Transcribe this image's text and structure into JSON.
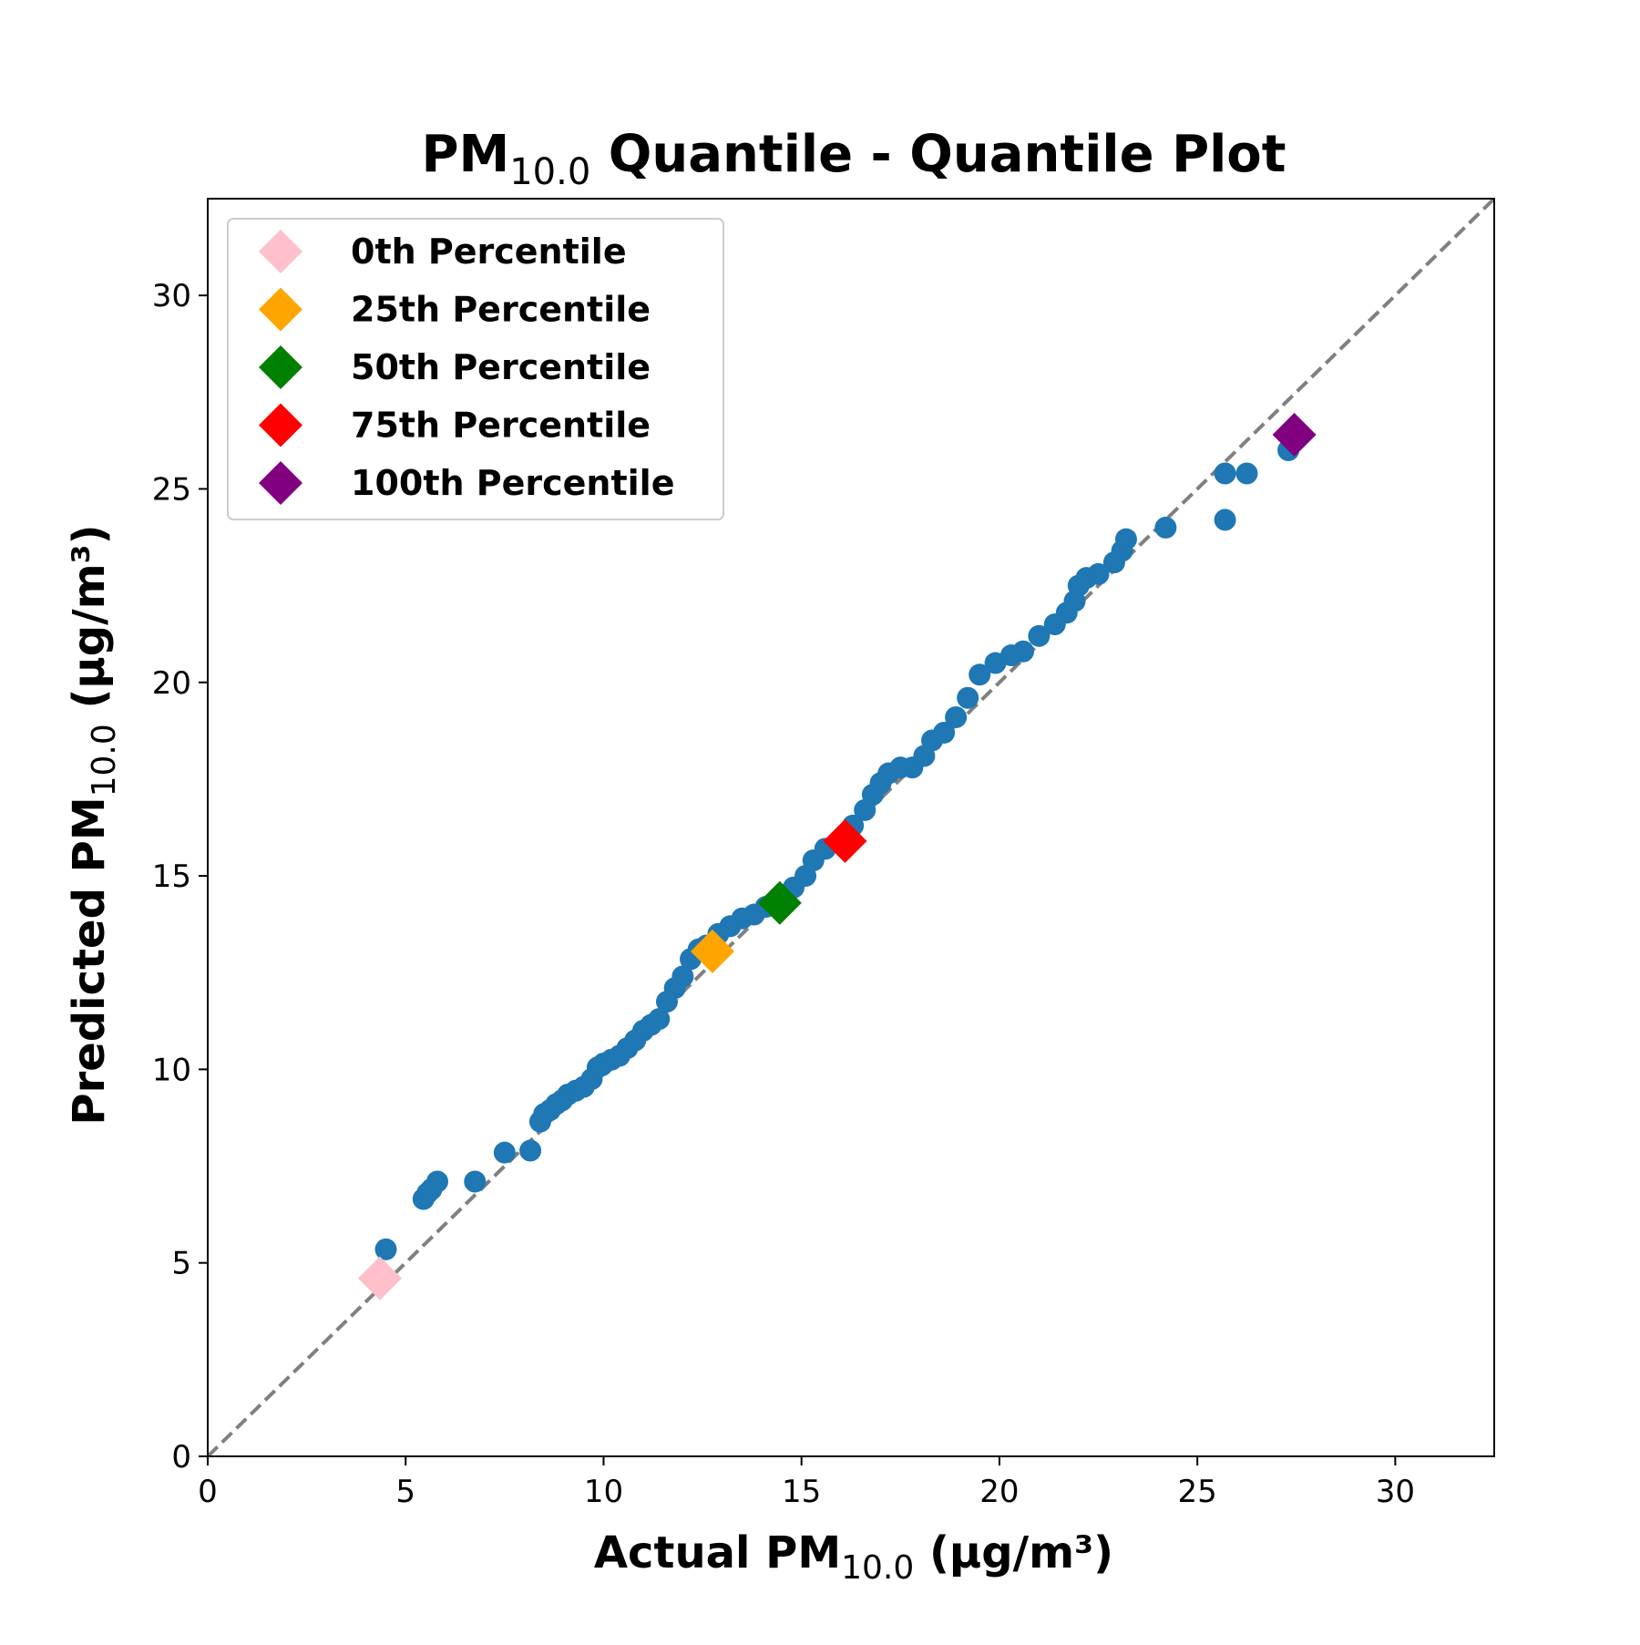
{
  "chart_data": {
    "type": "scatter",
    "title": {
      "main": "PM",
      "sub": "10.0",
      "rest": " Quantile - Quantile Plot"
    },
    "xlabel": {
      "main": "Actual PM",
      "sub": "10.0",
      "rest": " (µg/m³)"
    },
    "ylabel": {
      "main": "Predicted PM",
      "sub": "10.0",
      "rest": " (µg/m³)"
    },
    "xlim": [
      0,
      32.5
    ],
    "ylim": [
      0,
      32.5
    ],
    "xticks": [
      0,
      5,
      10,
      15,
      20,
      25,
      30
    ],
    "yticks": [
      0,
      5,
      10,
      15,
      20,
      25,
      30
    ],
    "grid": false,
    "legend_position": "top-left",
    "reference_line": {
      "style": "dashed",
      "color": "#808080",
      "from": [
        0,
        0
      ],
      "to": [
        32.5,
        32.5
      ]
    },
    "series": [
      {
        "marker": "circle",
        "color": "#1f77b4",
        "x": [
          4.5,
          5.45,
          5.55,
          5.65,
          5.8,
          6.75,
          7.5,
          8.15,
          8.4,
          8.5,
          8.65,
          8.8,
          8.95,
          9.1,
          9.3,
          9.5,
          9.7,
          9.85,
          9.95,
          10.0,
          10.2,
          10.4,
          10.6,
          10.8,
          11.0,
          11.2,
          11.4,
          11.6,
          11.8,
          12.0,
          12.2,
          12.4,
          12.6,
          12.9,
          13.2,
          13.5,
          13.8,
          14.1,
          14.5,
          14.8,
          15.1,
          15.3,
          15.6,
          16.0,
          16.3,
          16.6,
          16.8,
          17.0,
          17.2,
          17.5,
          17.8,
          18.1,
          18.3,
          18.6,
          18.9,
          19.2,
          19.5,
          19.9,
          20.3,
          20.6,
          21.0,
          21.4,
          21.7,
          21.9,
          22.0,
          22.2,
          22.5,
          22.9,
          23.1,
          23.2,
          24.2,
          25.7,
          25.7,
          26.25,
          27.3
        ],
        "y": [
          5.35,
          6.65,
          6.8,
          6.9,
          7.1,
          7.1,
          7.85,
          7.9,
          8.65,
          8.85,
          8.95,
          9.1,
          9.2,
          9.35,
          9.45,
          9.55,
          9.75,
          10.05,
          10.1,
          10.15,
          10.25,
          10.35,
          10.55,
          10.75,
          11.0,
          11.15,
          11.3,
          11.75,
          12.1,
          12.4,
          12.85,
          13.1,
          13.2,
          13.5,
          13.7,
          13.9,
          14.0,
          14.2,
          14.4,
          14.7,
          15.0,
          15.4,
          15.7,
          15.9,
          16.3,
          16.7,
          17.1,
          17.4,
          17.65,
          17.8,
          17.8,
          18.1,
          18.5,
          18.7,
          19.1,
          19.6,
          20.2,
          20.5,
          20.7,
          20.8,
          21.2,
          21.5,
          21.8,
          22.1,
          22.5,
          22.7,
          22.8,
          23.1,
          23.4,
          23.7,
          24.0,
          24.2,
          25.4,
          25.4,
          26.0
        ]
      }
    ],
    "percentiles": [
      {
        "label": "0th Percentile",
        "x": 4.35,
        "y": 4.6,
        "color": "#ffc0cb"
      },
      {
        "label": "25th Percentile",
        "x": 12.75,
        "y": 13.05,
        "color": "#ffa500"
      },
      {
        "label": "50th Percentile",
        "x": 14.45,
        "y": 14.3,
        "color": "#008000"
      },
      {
        "label": "75th Percentile",
        "x": 16.1,
        "y": 15.9,
        "color": "#ff0000"
      },
      {
        "label": "100th Percentile",
        "x": 27.45,
        "y": 26.4,
        "color": "#800080"
      }
    ]
  }
}
